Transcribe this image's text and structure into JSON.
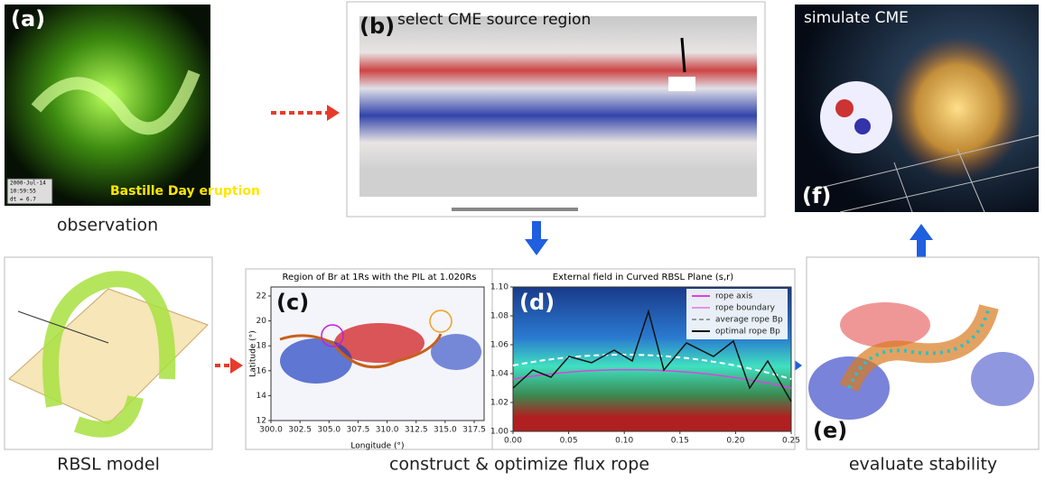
{
  "panel_a": {
    "label": "(a)",
    "overlay": "Bastille Day eruption",
    "timestamp": [
      "2000-Jul-14",
      "10:59:55",
      "dt = 6.7"
    ],
    "caption": "observation"
  },
  "panel_b": {
    "label": "(b)",
    "annotation": "select CME source region"
  },
  "panel_f": {
    "label": "(f)",
    "annotation": "simulate CME"
  },
  "rbsl": {
    "caption": "RBSL model"
  },
  "panel_c": {
    "label": "(c)",
    "title": "Region of Br at 1Rs with the PIL at 1.020Rs",
    "xlabel": "Longitude (°)",
    "ylabel": "Latitude (°)",
    "xticks": [
      "300.0",
      "302.5",
      "305.0",
      "307.5",
      "310.0",
      "312.5",
      "315.0",
      "317.5"
    ],
    "yticks": [
      "12",
      "14",
      "16",
      "18",
      "20",
      "22"
    ]
  },
  "panel_d": {
    "label": "(d)",
    "title": "External field in Curved RBSL Plane (s,r)",
    "xticks": [
      "0.00",
      "0.05",
      "0.10",
      "0.15",
      "0.20",
      "0.25"
    ],
    "yticks": [
      "1.00",
      "1.02",
      "1.04",
      "1.06",
      "1.08",
      "1.10"
    ],
    "legend": [
      "rope axis",
      "rope boundary",
      "average rope Bp",
      "optimal rope Bp"
    ]
  },
  "construct_caption": "construct & optimize flux rope",
  "panel_e": {
    "label": "(e)",
    "caption": "evaluate stability"
  }
}
